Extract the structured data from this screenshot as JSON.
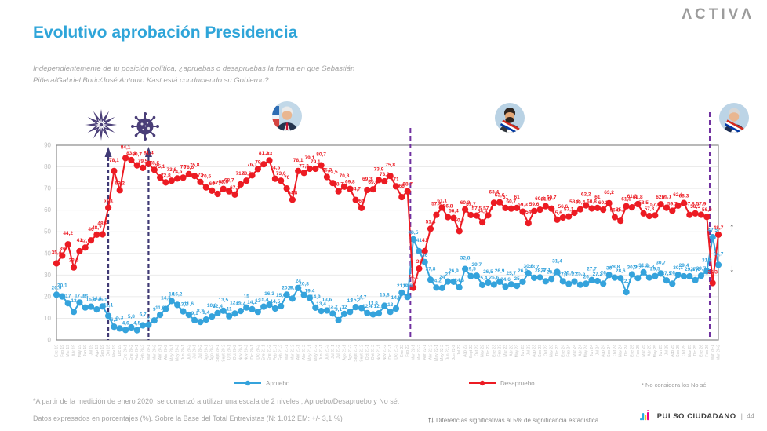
{
  "header": {
    "brand": "ΛCTIVΛ",
    "title": "Evolutivo aprobación Presidencia",
    "subtitle_line1": "Independientemente de tu posición política, ¿apruebas o desapruebas la forma en que Sebastián",
    "subtitle_line2": "Piñera/Gabriel Boric/José Antonio Kast está conduciendo su Gobierno?"
  },
  "chart_data": {
    "type": "line",
    "title": "Evolutivo aprobación Presidencia",
    "xlabel": "",
    "ylabel": "",
    "ylim": [
      0,
      90
    ],
    "yticks": [
      0,
      10,
      20,
      30,
      40,
      50,
      60,
      70,
      80,
      90
    ],
    "grid": true,
    "legend_position": "bottom",
    "categories": [
      "Ene 19",
      "Feb 19",
      "Mar 19",
      "Abr 19",
      "May 19",
      "Jun 19",
      "Jul 19",
      "Ago 19",
      "Sep 19",
      "Oct 19",
      "Nov 19",
      "Dic 19",
      "Ene 20-1",
      "Ene 20-2",
      "Feb 20-1",
      "Feb 20-2",
      "Mar 20-1",
      "Mar 20-2",
      "Abr 20-1",
      "Abr 20-2",
      "May 20-1",
      "May 20-2",
      "Jun 20-1",
      "Jun 20-2",
      "Jul 20-1",
      "Jul 20-2",
      "Ago 20-1",
      "Ago 20-2",
      "Sept 20-1",
      "Sept 20-2",
      "Oct 20-1",
      "Oct 20-2",
      "Nov 20-1",
      "Nov 20-2",
      "Dic 20-1",
      "Dic 20-2",
      "Ene 21-1",
      "Ene 21-2",
      "Feb 21-1",
      "Feb 21-2",
      "Mar 21-1",
      "Mar 21-2",
      "Abr 21-1",
      "Abr 21-2",
      "May 21-1",
      "May 21-2",
      "Jun 21-1",
      "Jun 21-2",
      "Jul 21-1",
      "Jul 21-2",
      "Ago 21-1",
      "Ago 21-2",
      "Sept 21-1",
      "Sept 21-2",
      "Oct 21-1",
      "Oct 21-2",
      "Nov 21-1",
      "Nov 21-2",
      "Dic 21-1",
      "Dic 21-2",
      "Ene 22",
      "Feb 22",
      "Mar 22-1",
      "Mar 22-2",
      "Abr 22-1",
      "Abr 22-2",
      "May 22-1",
      "May 22-2",
      "Jun 22-1",
      "Jun 22-2",
      "Jul 22",
      "Ago 22",
      "Sept 22",
      "Oct 22",
      "Nov 22",
      "Dic 22",
      "Ene 23",
      "Feb 23",
      "Mar 23",
      "Abr 23",
      "May 23",
      "Jun 23",
      "Jul 23",
      "Ago 23",
      "Sep 23",
      "Oct 23",
      "Nov 23",
      "Dic 23",
      "Ene 24",
      "Feb 24",
      "Mar 24",
      "Abr 24",
      "May 24",
      "Jun 24",
      "Jul 24",
      "Ago 24",
      "Sep 24",
      "Oct 24",
      "Nov 24",
      "Dic 24",
      "Ene 25",
      "Feb 25",
      "Mar 25",
      "Abr 25",
      "May 25",
      "Jun 25",
      "Jul 25",
      "Ago 25",
      "Sep 25",
      "Oct 25",
      "Nov 25",
      "Dic 25",
      "Ene 26",
      "Feb 26",
      "Mar 26-1",
      "Mar 26-2"
    ],
    "series": [
      {
        "name": "Apruebo",
        "color": "#35a3dc",
        "values": [
          20.9,
          20.1,
          17.0,
          13.0,
          17.3,
          15.0,
          15.4,
          14.1,
          15.5,
          11.1,
          6.1,
          5.3,
          4.6,
          5.8,
          4.5,
          6.7,
          7.0,
          9.0,
          11.6,
          14.3,
          18.0,
          16.2,
          13.2,
          11.6,
          9.1,
          8.3,
          9.4,
          10.8,
          12.4,
          13.5,
          11.0,
          12.2,
          13.4,
          15.0,
          14.2,
          13.0,
          15.4,
          16.3,
          14.5,
          15.6,
          20.9,
          19.1,
          24.0,
          20.8,
          19.4,
          14.9,
          13.4,
          13.6,
          12.2,
          9.1,
          12.0,
          13.0,
          15.2,
          14.7,
          12.4,
          11.8,
          12.3,
          15.8,
          13.0,
          14.5,
          21.8,
          19.9,
          46.5,
          41.0,
          36.0,
          27.8,
          24.2,
          24.0,
          27.0,
          26.9,
          24.3,
          32.8,
          29.5,
          29.7,
          25.4,
          26.5,
          25.6,
          26.9,
          24.6,
          25.7,
          25.0,
          26.9,
          30.8,
          28.7,
          28.9,
          27.1,
          28.2,
          31.4,
          27.1,
          25.9,
          27.0,
          25.5,
          26.0,
          27.7,
          27.2,
          26.0,
          30.0,
          28.8,
          28.6,
          22.1,
          30.3,
          28.6,
          31.3,
          28.8,
          29.5,
          30.7,
          27.5,
          26.0,
          30.1,
          29.4,
          29.4,
          27.6,
          29.7,
          31.8,
          47.5,
          34.7
        ]
      },
      {
        "name": "Desapruebo",
        "color": "#ec1b23",
        "values": [
          35.4,
          39.0,
          44.2,
          33.5,
          41.0,
          42.7,
          46.0,
          48.7,
          48.8,
          61.1,
          78.1,
          69.2,
          84.1,
          83.1,
          80.7,
          79.5,
          81.4,
          78.6,
          75.1,
          72.8,
          73.6,
          74.6,
          75.0,
          76.6,
          75.8,
          73.0,
          70.5,
          69.0,
          67.5,
          69.8,
          68.7,
          67.2,
          71.9,
          73.6,
          76.1,
          79.0,
          81.2,
          83.0,
          74.5,
          73.6,
          70.0,
          64.8,
          78.1,
          77.2,
          79.1,
          79.1,
          80.7,
          75.3,
          72.5,
          68.7,
          70.8,
          69.8,
          64.7,
          61.0,
          69.3,
          69.6,
          73.9,
          73.3,
          75.8,
          71.0,
          66.0,
          68.7,
          24.1,
          33.0,
          41.0,
          51.4,
          57.8,
          61.1,
          56.8,
          56.4,
          50.3,
          60.3,
          57.7,
          57.5,
          54.4,
          57.6,
          63.4,
          63.6,
          61.0,
          60.7,
          61.0,
          59.3,
          54.0,
          59.6,
          60.2,
          61.8,
          60.7,
          55.6,
          56.6,
          57.1,
          58.8,
          60.4,
          62.2,
          60.8,
          61.0,
          60.2,
          63.2,
          56.8,
          55.1,
          61.8,
          61.3,
          62.8,
          58.5,
          57.3,
          57.6,
          62.7,
          61.1,
          59.7,
          62.1,
          63.3,
          57.8,
          58.5,
          57.9,
          56.9,
          26.3,
          48.7
        ]
      }
    ],
    "event_lines": [
      {
        "name": "estallido-social",
        "index": 9,
        "style": "navy-arrow",
        "color": "#403a75"
      },
      {
        "name": "inicio-pandemia",
        "index": 16,
        "style": "navy-arrow",
        "color": "#403a75"
      },
      {
        "name": "cambio-gobierno-boric",
        "index": 61.5,
        "style": "purple",
        "color": "#7030a0"
      },
      {
        "name": "cambio-gobierno-kast",
        "index": 113.5,
        "style": "purple-tall",
        "color": "#7030a0"
      }
    ],
    "significance_markers": [
      {
        "symbol": "↑",
        "at_value": 52
      },
      {
        "symbol": "↓",
        "at_value": 33
      }
    ]
  },
  "legend": {
    "apruebo_label": "Apruebo",
    "desapruebo_label": "Desapruebo",
    "note": "* No considera los No sé"
  },
  "footer": {
    "footnote1": "*A partir de la medición de enero 2020, se comenzó a utilizar una escala de 2 niveles ; Apruebo/Desapruebo y No sé.",
    "footnote2": "Datos expresados en porcentajes (%). Sobre la Base del Total Entrevistas (N: 1.012  EM: +/- 3,1 %)",
    "significance_arrows": "↑↓",
    "significance_text": "Diferencias  significativas  al 5% de significancia estadística",
    "brand": "PULSO CIUDADANO",
    "page_number": "44"
  }
}
